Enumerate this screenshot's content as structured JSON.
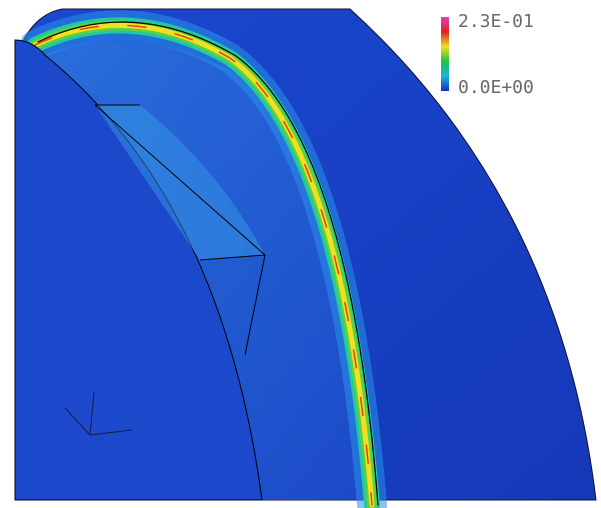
{
  "legend": {
    "max_label": "2.3E-01",
    "min_label": "0.0E+00"
  }
}
